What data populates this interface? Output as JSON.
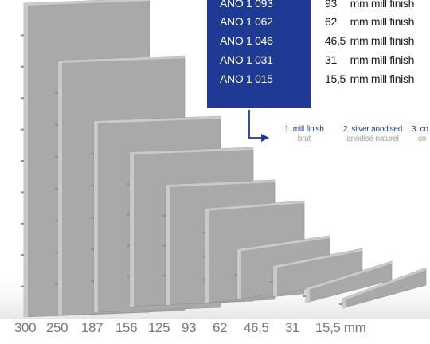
{
  "codes": [
    {
      "code": "ANO 1 093",
      "size_value": "93",
      "size_text": "mm mill finish"
    },
    {
      "code": "ANO 1 062",
      "size_value": "62",
      "size_text": "mm mill finish"
    },
    {
      "code": "ANO 1 046",
      "size_value": "46,5",
      "size_text": "mm mill finish"
    },
    {
      "code": "ANO 1 031",
      "size_value": "31",
      "size_text": "mm mill finish"
    },
    {
      "code_prefix": "ANO ",
      "code_underlined": "1",
      "code_suffix": " 015",
      "size_value": "15,5",
      "size_text": "mm mill finish"
    }
  ],
  "finishes": [
    {
      "en": "1. mill finish",
      "fr": "brut"
    },
    {
      "en": "2. silver anodised",
      "fr": "anodisé naturel"
    },
    {
      "en": "3. co",
      "fr": "co"
    }
  ],
  "scale": [
    "300",
    "250",
    "187",
    "156",
    "125",
    "93",
    "62",
    "46,5",
    "31",
    "15,5 mm"
  ],
  "colors": {
    "accent": "#1f3a93",
    "panel_face": "#a7a9ab",
    "panel_edge": "#c9cacc",
    "scale_text": "#777777"
  }
}
